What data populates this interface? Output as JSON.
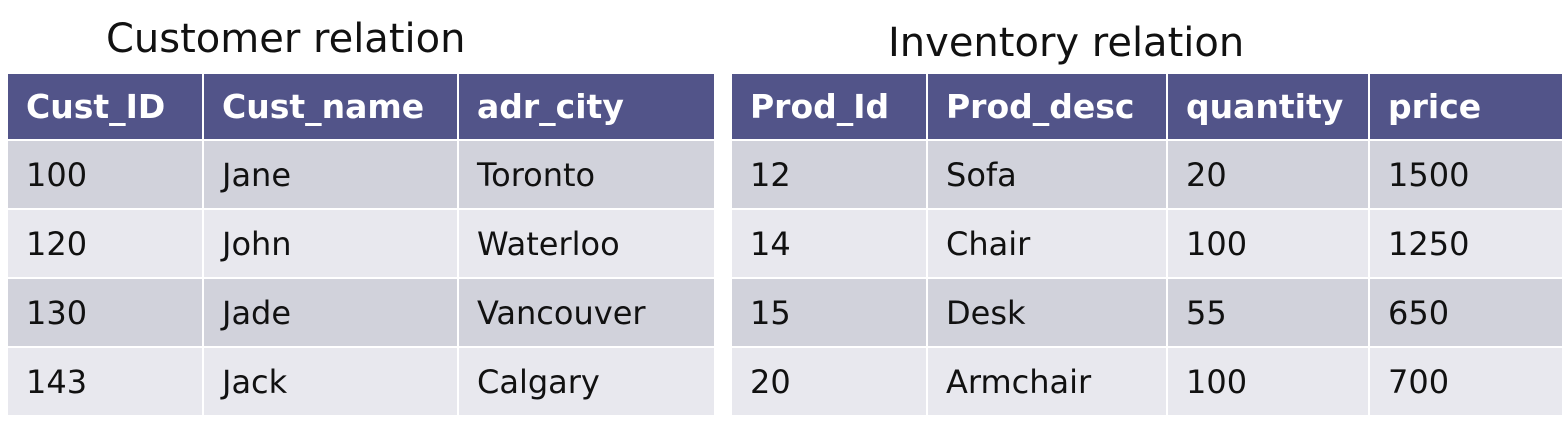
{
  "customer": {
    "caption": "Customer relation",
    "columns": [
      "Cust_ID",
      "Cust_name",
      "adr_city"
    ],
    "rows": [
      [
        "100",
        "Jane",
        "Toronto"
      ],
      [
        "120",
        "John",
        "Waterloo"
      ],
      [
        "130",
        "Jade",
        "Vancouver"
      ],
      [
        "143",
        "Jack",
        "Calgary"
      ]
    ]
  },
  "inventory": {
    "caption": "Inventory relation",
    "columns": [
      "Prod_Id",
      "Prod_desc",
      "quantity",
      "price"
    ],
    "rows": [
      [
        "12",
        "Sofa",
        "20",
        "1500"
      ],
      [
        "14",
        "Chair",
        "100",
        "1250"
      ],
      [
        "15",
        "Desk",
        "55",
        "650"
      ],
      [
        "20",
        "Armchair",
        "100",
        "700"
      ]
    ]
  },
  "colors": {
    "header_bg": "#525489",
    "header_text": "#ffffff",
    "row_dark": "#d1d2db",
    "row_light": "#e8e8ee"
  }
}
